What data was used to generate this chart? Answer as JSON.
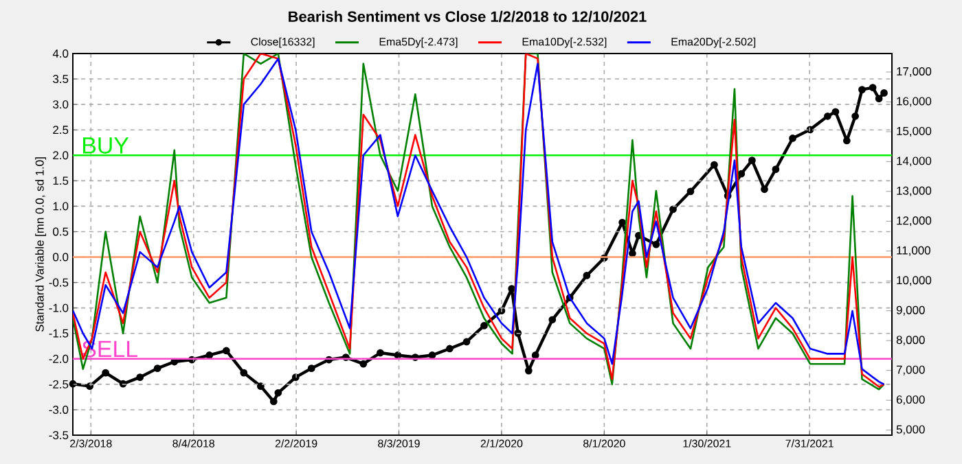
{
  "chart_data": {
    "type": "line",
    "title": "Bearish Sentiment vs Close 1/2/2018 to 12/10/2021",
    "ylabel": "Standard Variable [mn 0.0, sd 1.0]",
    "x": [
      "2018-01-02",
      "2018-01-20",
      "2018-02-05",
      "2018-03-01",
      "2018-04-01",
      "2018-05-01",
      "2018-06-01",
      "2018-07-01",
      "2018-07-10",
      "2018-08-01",
      "2018-09-01",
      "2018-10-01",
      "2018-11-01",
      "2018-12-01",
      "2019-01-01",
      "2019-02-01",
      "2019-03-01",
      "2019-04-01",
      "2019-05-08",
      "2019-06-01",
      "2019-07-01",
      "2019-08-01",
      "2019-09-01",
      "2019-10-01",
      "2019-11-01",
      "2019-12-01",
      "2020-01-01",
      "2020-02-01",
      "2020-02-20",
      "2020-03-01",
      "2020-03-15",
      "2020-04-05",
      "2020-05-01",
      "2020-06-01",
      "2020-07-01",
      "2020-08-01",
      "2020-08-15",
      "2020-09-01",
      "2020-09-20",
      "2020-10-01",
      "2020-10-15",
      "2020-11-01",
      "2020-12-01",
      "2021-01-01",
      "2021-02-01",
      "2021-03-01",
      "2021-03-20",
      "2021-04-01",
      "2021-05-01",
      "2021-06-01",
      "2021-07-01",
      "2021-08-01",
      "2021-09-01",
      "2021-10-01",
      "2021-10-15",
      "2021-11-01",
      "2021-12-01",
      "2021-12-10"
    ],
    "series": [
      {
        "name": "Close[16332]",
        "color": "#000000",
        "axis": "y2",
        "marker": "circle",
        "x": [
          "2018-01-02",
          "2018-02-01",
          "2018-03-01",
          "2018-04-01",
          "2018-05-01",
          "2018-06-01",
          "2018-07-01",
          "2018-08-01",
          "2018-09-01",
          "2018-10-01",
          "2018-11-01",
          "2018-12-01",
          "2018-12-24",
          "2019-01-01",
          "2019-02-01",
          "2019-03-01",
          "2019-04-01",
          "2019-05-01",
          "2019-06-01",
          "2019-07-01",
          "2019-08-01",
          "2019-09-01",
          "2019-10-01",
          "2019-11-01",
          "2019-12-01",
          "2020-01-01",
          "2020-02-01",
          "2020-02-19",
          "2020-03-01",
          "2020-03-20",
          "2020-04-01",
          "2020-05-01",
          "2020-06-01",
          "2020-07-01",
          "2020-08-01",
          "2020-09-02",
          "2020-09-20",
          "2020-10-01",
          "2020-11-01",
          "2020-12-01",
          "2021-01-01",
          "2021-02-12",
          "2021-03-08",
          "2021-04-01",
          "2021-04-20",
          "2021-05-12",
          "2021-06-01",
          "2021-07-01",
          "2021-08-01",
          "2021-09-01",
          "2021-09-15",
          "2021-10-05",
          "2021-10-20",
          "2021-11-01",
          "2021-11-20",
          "2021-12-01",
          "2021-12-10"
        ],
        "values": [
          6550,
          6470,
          6920,
          6550,
          6770,
          7070,
          7290,
          7360,
          7510,
          7660,
          6920,
          6470,
          5960,
          6250,
          6770,
          7070,
          7360,
          7440,
          7220,
          7590,
          7510,
          7440,
          7510,
          7730,
          7960,
          8500,
          9000,
          9740,
          8250,
          6990,
          7510,
          8700,
          9440,
          10180,
          10770,
          11960,
          10920,
          11520,
          11220,
          12400,
          13000,
          13890,
          12850,
          13590,
          14040,
          13070,
          13740,
          14780,
          15070,
          15520,
          15670,
          14700,
          15520,
          16410,
          16480,
          16110,
          16300
        ]
      },
      {
        "name": "Ema5Dy[-2.473]",
        "color": "#008000",
        "values": [
          -1.2,
          -2.2,
          -1.6,
          0.5,
          -1.5,
          0.8,
          -0.5,
          2.1,
          0.6,
          -0.4,
          -0.9,
          -0.8,
          4.0,
          3.8,
          4.0,
          1.8,
          0.0,
          -0.9,
          -1.9,
          3.8,
          2.0,
          1.3,
          3.2,
          1.0,
          0.2,
          -0.4,
          -1.2,
          -1.7,
          -1.9,
          0.6,
          4.0,
          4.0,
          -0.3,
          -1.3,
          -1.6,
          -1.8,
          -2.5,
          -0.5,
          2.3,
          0.8,
          -0.4,
          1.3,
          -1.3,
          -1.8,
          -0.2,
          0.2,
          3.3,
          -0.2,
          -1.8,
          -1.2,
          -1.5,
          -2.1,
          -2.1,
          -2.1,
          1.2,
          -2.4,
          -2.6,
          -2.5
        ]
      },
      {
        "name": "Ema10Dy[-2.532]",
        "color": "#ff0000",
        "values": [
          -1.1,
          -2.0,
          -1.6,
          -0.3,
          -1.3,
          0.5,
          -0.3,
          1.5,
          0.8,
          -0.2,
          -0.8,
          -0.5,
          3.5,
          4.0,
          3.9,
          2.2,
          0.2,
          -0.7,
          -1.8,
          2.8,
          2.3,
          1.0,
          2.4,
          1.2,
          0.3,
          -0.2,
          -1.0,
          -1.6,
          -1.8,
          0.3,
          4.0,
          3.9,
          0.0,
          -1.2,
          -1.5,
          -1.7,
          -2.4,
          -0.6,
          1.5,
          1.0,
          -0.2,
          0.9,
          -1.1,
          -1.6,
          -0.4,
          0.4,
          2.7,
          0.0,
          -1.6,
          -1.0,
          -1.4,
          -2.0,
          -2.0,
          -2.0,
          0.0,
          -2.3,
          -2.55,
          -2.5
        ]
      },
      {
        "name": "Ema20Dy[-2.502]",
        "color": "#0000ff",
        "values": [
          -1.05,
          -1.5,
          -1.8,
          -0.55,
          -1.1,
          0.1,
          -0.2,
          0.7,
          1.0,
          0.1,
          -0.6,
          -0.3,
          3.0,
          3.4,
          3.9,
          2.5,
          0.5,
          -0.3,
          -1.4,
          2.0,
          2.4,
          0.8,
          2.0,
          1.3,
          0.6,
          0.0,
          -0.8,
          -1.3,
          -1.5,
          -0.1,
          2.5,
          3.8,
          0.3,
          -0.8,
          -1.3,
          -1.6,
          -2.1,
          -0.8,
          0.9,
          1.1,
          0.0,
          0.7,
          -0.8,
          -1.4,
          -0.6,
          0.5,
          1.9,
          0.2,
          -1.3,
          -0.9,
          -1.2,
          -1.8,
          -1.9,
          -1.9,
          -1.06,
          -2.2,
          -2.45,
          -2.5
        ]
      }
    ],
    "xlim": [
      "2018-01-02",
      "2021-12-24"
    ],
    "xticks": [
      {
        "value": "2018-02-03",
        "label": "2/3/2018"
      },
      {
        "value": "2018-08-04",
        "label": "8/4/2018"
      },
      {
        "value": "2019-02-02",
        "label": "2/2/2019"
      },
      {
        "value": "2019-08-03",
        "label": "8/3/2019"
      },
      {
        "value": "2020-02-01",
        "label": "2/1/2020"
      },
      {
        "value": "2020-08-01",
        "label": "8/1/2020"
      },
      {
        "value": "2021-01-30",
        "label": "1/30/2021"
      },
      {
        "value": "2021-07-31",
        "label": "7/31/2021"
      }
    ],
    "ylim": [
      -3.5,
      4.0
    ],
    "yticks": [
      {
        "value": -3.5,
        "label": "-3.5"
      },
      {
        "value": -3.0,
        "label": "-3.0"
      },
      {
        "value": -2.5,
        "label": "-2.5"
      },
      {
        "value": -2.0,
        "label": "-2.0"
      },
      {
        "value": -1.5,
        "label": "-1.5"
      },
      {
        "value": -1.0,
        "label": "-1.0"
      },
      {
        "value": -0.5,
        "label": "-0.5"
      },
      {
        "value": 0.0,
        "label": "0.0"
      },
      {
        "value": 0.5,
        "label": "0.5"
      },
      {
        "value": 1.0,
        "label": "1.0"
      },
      {
        "value": 1.5,
        "label": "1.5"
      },
      {
        "value": 2.0,
        "label": "2.0"
      },
      {
        "value": 2.5,
        "label": "2.5"
      },
      {
        "value": 3.0,
        "label": "3.0"
      },
      {
        "value": 3.5,
        "label": "3.5"
      },
      {
        "value": 4.0,
        "label": "4.0"
      }
    ],
    "y2lim": [
      4830,
      17620
    ],
    "y2ticks": [
      {
        "value": 5000,
        "label": "5,000"
      },
      {
        "value": 6000,
        "label": "6,000"
      },
      {
        "value": 7000,
        "label": "7,000"
      },
      {
        "value": 8000,
        "label": "8,000"
      },
      {
        "value": 9000,
        "label": "9,000"
      },
      {
        "value": 10000,
        "label": "10,000"
      },
      {
        "value": 11000,
        "label": "11,000"
      },
      {
        "value": 12000,
        "label": "12,000"
      },
      {
        "value": 13000,
        "label": "13,000"
      },
      {
        "value": 14000,
        "label": "14,000"
      },
      {
        "value": 15000,
        "label": "15,000"
      },
      {
        "value": 16000,
        "label": "16,000"
      },
      {
        "value": 17000,
        "label": "17,000"
      }
    ],
    "ref_lines": [
      {
        "axis": "y",
        "value": 2.0,
        "label": "BUY",
        "color": "#00ee00"
      },
      {
        "axis": "y",
        "value": 0.0,
        "color": "#ff9966"
      },
      {
        "axis": "y",
        "value": -2.0,
        "label": "SELL",
        "color": "#ff44cc"
      }
    ],
    "grid": true,
    "legend": "top",
    "line_style": "solid"
  }
}
